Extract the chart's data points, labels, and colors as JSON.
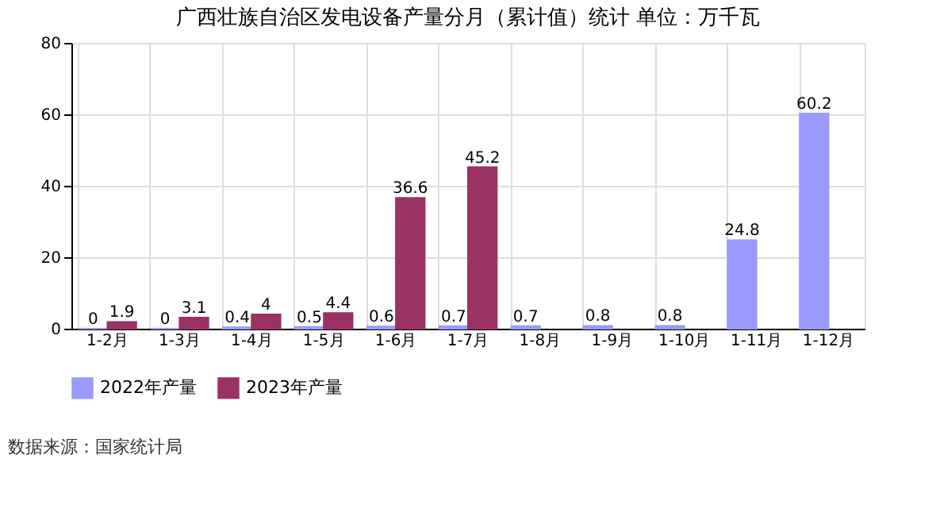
{
  "chart_data": {
    "type": "bar",
    "title": "广西壮族自治区发电设备产量分月（累计值）统计 单位：万千瓦",
    "categories": [
      "1-2月",
      "1-3月",
      "1-4月",
      "1-5月",
      "1-6月",
      "1-7月",
      "1-8月",
      "1-9月",
      "1-10月",
      "1-11月",
      "1-12月"
    ],
    "series": [
      {
        "name": "2022年产量",
        "color": "#9999ff",
        "values": [
          0,
          0,
          0.4,
          0.5,
          0.6,
          0.7,
          0.7,
          0.8,
          0.8,
          24.8,
          60.2
        ]
      },
      {
        "name": "2023年产量",
        "color": "#993366",
        "values": [
          1.9,
          3.1,
          4,
          4.4,
          36.6,
          45.2,
          null,
          null,
          null,
          null,
          null
        ]
      }
    ],
    "ylim": [
      0,
      80
    ],
    "yticks": [
      0,
      20,
      40,
      60,
      80
    ],
    "grid": true,
    "legend": "bottom",
    "data_labels": true,
    "annotations": [
      "数据来源：国家统计局"
    ]
  }
}
